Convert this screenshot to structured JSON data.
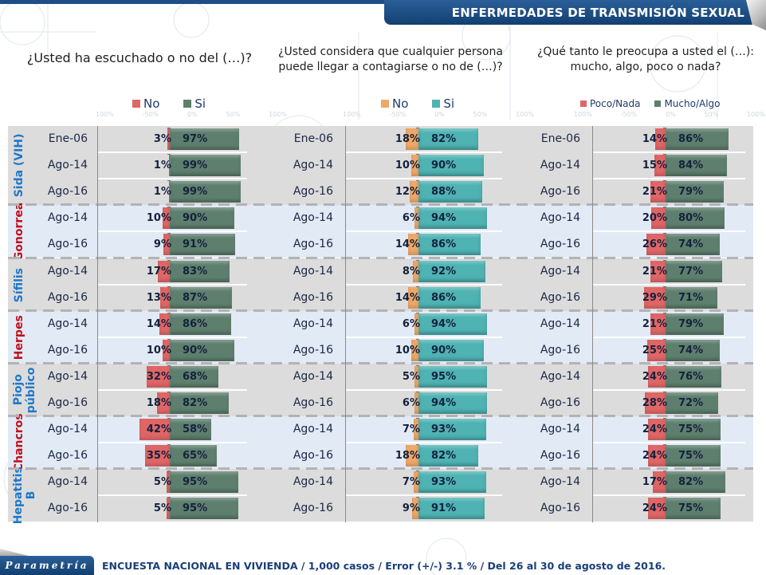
{
  "header": {
    "title": "ENFERMEDADES DE TRANSMISIÓN SEXUAL"
  },
  "footer": {
    "logo": "Parametría",
    "text": "ENCUESTA NACIONAL EN VIVIENDA / 1,000 casos / Error (+/-) 3.1 % / Del 26 al 30 de agosto de 2016."
  },
  "groups": [
    {
      "name": "Sida (VIH)",
      "color": "#1f77c9",
      "rows": 3,
      "band": "gray"
    },
    {
      "name": "Gonorrea",
      "color": "#c0101a",
      "rows": 2,
      "band": "blue"
    },
    {
      "name": "Sífilis",
      "color": "#1f77c9",
      "rows": 2,
      "band": "gray"
    },
    {
      "name": "Herpes",
      "color": "#c0101a",
      "rows": 2,
      "band": "blue"
    },
    {
      "name": "Piojo público",
      "color": "#1f77c9",
      "rows": 2,
      "band": "gray"
    },
    {
      "name": "Chancros",
      "color": "#c0101a",
      "rows": 2,
      "band": "blue"
    },
    {
      "name": "Hepatitis B",
      "color": "#1f77c9",
      "rows": 2,
      "band": "gray"
    }
  ],
  "chart_data": [
    {
      "type": "bar",
      "orientation": "horizontal-diverging",
      "title": "¿Usted ha escuchado o no del (…)?",
      "axis_ticks": [
        "100%",
        "-50%",
        "0%",
        "50%",
        "100%"
      ],
      "xlim": [
        -100,
        100
      ],
      "categories": [
        "Sida (VIH) Ene-06",
        "Sida (VIH) Ago-14",
        "Sida (VIH) Ago-16",
        "Gonorrea Ago-14",
        "Gonorrea Ago-16",
        "Sífilis Ago-14",
        "Sífilis Ago-16",
        "Herpes Ago-14",
        "Herpes Ago-16",
        "Piojo público Ago-14",
        "Piojo público Ago-16",
        "Chancros Ago-14",
        "Chancros Ago-16",
        "Hepatitis B Ago-14",
        "Hepatitis B Ago-16"
      ],
      "row_labels": [
        "Ene-06",
        "Ago-14",
        "Ago-16",
        "Ago-14",
        "Ago-16",
        "Ago-14",
        "Ago-16",
        "Ago-14",
        "Ago-16",
        "Ago-14",
        "Ago-16",
        "Ago-14",
        "Ago-16",
        "Ago-14",
        "Ago-16"
      ],
      "series": [
        {
          "name": "No",
          "color": "#e06666",
          "values": [
            3,
            1,
            1,
            10,
            9,
            17,
            13,
            14,
            10,
            32,
            18,
            42,
            35,
            5,
            5
          ]
        },
        {
          "name": "Si",
          "color": "#5e7f6e",
          "values": [
            97,
            99,
            99,
            90,
            91,
            83,
            87,
            86,
            90,
            68,
            82,
            58,
            65,
            95,
            95
          ]
        }
      ]
    },
    {
      "type": "bar",
      "orientation": "horizontal-diverging",
      "title": "¿Usted considera que cualquier persona puede llegar a contagiarse o no de (…)?",
      "axis_ticks": [
        "100%",
        "-50%",
        "0%",
        "50%",
        "100%"
      ],
      "xlim": [
        -100,
        100
      ],
      "categories": [
        "Sida (VIH) Ene-06",
        "Sida (VIH) Ago-14",
        "Sida (VIH) Ago-16",
        "Gonorrea Ago-14",
        "Gonorrea Ago-16",
        "Sífilis Ago-14",
        "Sífilis Ago-16",
        "Herpes Ago-14",
        "Herpes Ago-16",
        "Piojo público Ago-14",
        "Piojo público Ago-16",
        "Chancros Ago-14",
        "Chancros Ago-16",
        "Hepatitis B Ago-14",
        "Hepatitis B Ago-16"
      ],
      "row_labels": [
        "Ene-06",
        "Ago-14",
        "Ago-16",
        "Ago-14",
        "Ago-16",
        "Ago-14",
        "Ago-16",
        "Ago-14",
        "Ago-16",
        "Ago-14",
        "Ago-16",
        "Ago-14",
        "Ago-16",
        "Ago-14",
        "Ago-16"
      ],
      "series": [
        {
          "name": "No",
          "color": "#f0a868",
          "values": [
            18,
            10,
            12,
            6,
            14,
            8,
            14,
            6,
            10,
            5,
            6,
            7,
            18,
            7,
            9
          ]
        },
        {
          "name": "Si",
          "color": "#4fb3b3",
          "values": [
            82,
            90,
            88,
            94,
            86,
            92,
            86,
            94,
            90,
            95,
            94,
            93,
            82,
            93,
            91
          ]
        }
      ]
    },
    {
      "type": "bar",
      "orientation": "horizontal-diverging",
      "title": "¿Qué tanto le preocupa a usted el (…): mucho, algo, poco o nada?",
      "axis_ticks": [
        "100%",
        "-50%",
        "0%",
        "50%",
        "100%"
      ],
      "xlim": [
        -100,
        100
      ],
      "categories": [
        "Sida (VIH) Ene-06",
        "Sida (VIH) Ago-14",
        "Sida (VIH) Ago-16",
        "Gonorrea Ago-14",
        "Gonorrea Ago-16",
        "Sífilis Ago-14",
        "Sífilis Ago-16",
        "Herpes Ago-14",
        "Herpes Ago-16",
        "Piojo público Ago-14",
        "Piojo público Ago-16",
        "Chancros Ago-14",
        "Chancros Ago-16",
        "Hepatitis B Ago-14",
        "Hepatitis B Ago-16"
      ],
      "row_labels": [
        "Ene-06",
        "Ago-14",
        "Ago-16",
        "Ago-14",
        "Ago-16",
        "Ago-14",
        "Ago-16",
        "Ago-14",
        "Ago-16",
        "Ago-14",
        "Ago-16",
        "Ago-14",
        "Ago-16",
        "Ago-14",
        "Ago-16"
      ],
      "series": [
        {
          "name": "Poco/Nada",
          "color": "#e06666",
          "values": [
            14,
            15,
            21,
            20,
            26,
            21,
            29,
            21,
            25,
            24,
            28,
            24,
            24,
            17,
            24
          ]
        },
        {
          "name": "Mucho/Algo",
          "color": "#5e7f6e",
          "values": [
            86,
            84,
            79,
            80,
            74,
            77,
            71,
            79,
            74,
            76,
            72,
            75,
            75,
            82,
            75
          ]
        }
      ]
    }
  ],
  "questions": {
    "q1": "¿Usted ha escuchado o no del (…)?",
    "q2_line1": "¿Usted considera que cualquier persona",
    "q2_line2": "puede llegar a contagiarse o no de (…)?",
    "q3_line1": "¿Qué tanto le preocupa a usted el (…):",
    "q3_line2": "mucho, algo, poco o nada?"
  },
  "legends": [
    {
      "neg": "No",
      "pos": "Si"
    },
    {
      "neg": "No",
      "pos": "Si"
    },
    {
      "neg": "Poco/Nada",
      "pos": "Mucho/Algo"
    }
  ],
  "band_colors": {
    "gray": "#dcdcdc",
    "blue": "#e2eaf6"
  }
}
